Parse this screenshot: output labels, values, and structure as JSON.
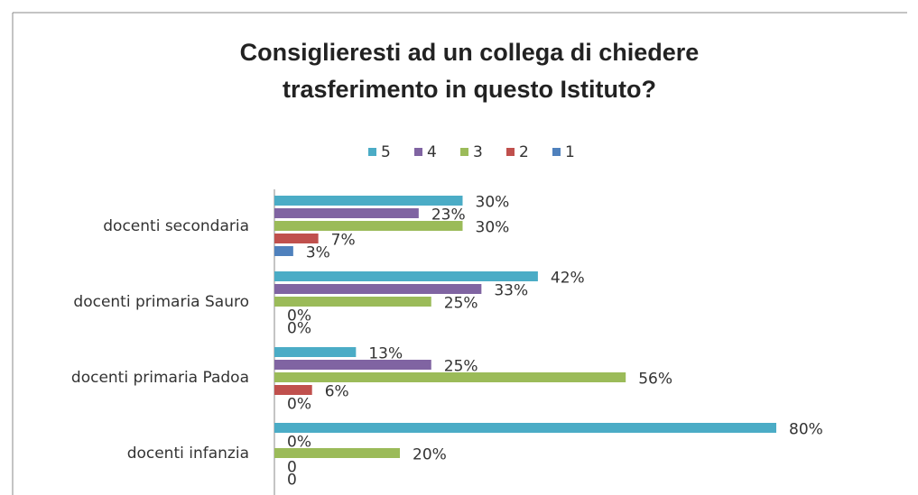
{
  "chart_data": {
    "type": "bar",
    "orientation": "horizontal",
    "title": [
      "Consiglieresti ad un collega di chiedere",
      "trasferimento in questo Istituto?"
    ],
    "categories": [
      "docenti secondaria",
      "docenti primaria Sauro",
      "docenti primaria Padoa",
      "docenti infanzia"
    ],
    "series": [
      {
        "name": "5",
        "color": "#4bacc6",
        "values": [
          30,
          42,
          13,
          80
        ],
        "value_labels": [
          "30%",
          "42%",
          "13%",
          "80%"
        ]
      },
      {
        "name": "4",
        "color": "#8064a2",
        "values": [
          23,
          33,
          25,
          0
        ],
        "value_labels": [
          "23%",
          "33%",
          "25%",
          "0%"
        ]
      },
      {
        "name": "3",
        "color": "#9bbb59",
        "values": [
          30,
          25,
          56,
          20
        ],
        "value_labels": [
          "30%",
          "25%",
          "56%",
          "20%"
        ]
      },
      {
        "name": "2",
        "color": "#c0504d",
        "values": [
          7,
          0,
          6,
          0
        ],
        "value_labels": [
          "7%",
          "0%",
          "6%",
          "0"
        ]
      },
      {
        "name": "1",
        "color": "#4f81bd",
        "values": [
          3,
          0,
          0,
          0
        ],
        "value_labels": [
          "3%",
          "0%",
          "0%",
          "0"
        ]
      }
    ],
    "legend": "top"
  }
}
